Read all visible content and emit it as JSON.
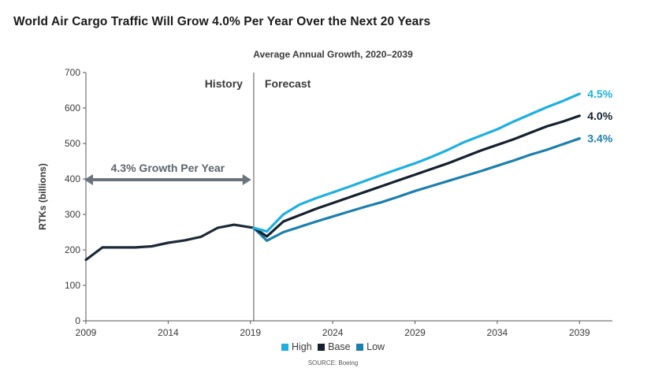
{
  "title": "World Air Cargo Traffic Will Grow 4.0% Per Year Over the Next 20 Years",
  "subtitle": "Average Annual Growth, 2020–2039",
  "source": "SOURCE: Boeing",
  "chart_data": {
    "type": "line",
    "title": "World Air Cargo Traffic Will Grow 4.0% Per Year Over the Next 20 Years",
    "subtitle": "Average Annual Growth, 2020–2039",
    "xlabel": "",
    "ylabel": "RTKs (billions)",
    "xlim": [
      2009,
      2041
    ],
    "ylim": [
      0,
      700
    ],
    "x_ticks": [
      "2009",
      "2014",
      "2019",
      "2024",
      "2029",
      "2034",
      "2039"
    ],
    "y_ticks": [
      "0",
      "100",
      "200",
      "300",
      "400",
      "500",
      "600",
      "700"
    ],
    "grid": false,
    "legend_position": "bottom",
    "regions": {
      "history_label": "History",
      "forecast_label": "Forecast",
      "divider_x": 2019.2
    },
    "annotation": {
      "text": "4.3% Growth Per Year",
      "x_from": 2009,
      "x_to": 2019
    },
    "history": {
      "name": "",
      "color": "#1b2a38",
      "x": [
        2009,
        2010,
        2011,
        2012,
        2013,
        2014,
        2015,
        2016,
        2017,
        2018,
        2019.2
      ],
      "y": [
        172,
        207,
        207,
        207,
        210,
        220,
        227,
        237,
        262,
        271,
        262
      ]
    },
    "series": [
      {
        "name": "High",
        "color": "#1fb0e0",
        "end_label": "4.5%",
        "x": [
          2019.2,
          2020,
          2021,
          2022,
          2023,
          2024,
          2025,
          2026,
          2027,
          2028,
          2029,
          2030,
          2031,
          2032,
          2033,
          2034,
          2035,
          2036,
          2037,
          2038,
          2039
        ],
        "y": [
          262,
          252,
          300,
          328,
          346,
          362,
          378,
          395,
          412,
          428,
          444,
          462,
          482,
          504,
          522,
          540,
          562,
          582,
          602,
          620,
          640
        ]
      },
      {
        "name": "Base",
        "color": "#14212f",
        "end_label": "4.0%",
        "x": [
          2019.2,
          2020,
          2021,
          2022,
          2023,
          2024,
          2025,
          2026,
          2027,
          2028,
          2029,
          2030,
          2031,
          2032,
          2033,
          2034,
          2035,
          2036,
          2037,
          2038,
          2039
        ],
        "y": [
          262,
          238,
          280,
          298,
          316,
          332,
          348,
          364,
          380,
          396,
          412,
          428,
          444,
          462,
          480,
          496,
          512,
          530,
          548,
          562,
          578
        ]
      },
      {
        "name": "Low",
        "color": "#1d7fae",
        "end_label": "3.4%",
        "x": [
          2019.2,
          2020,
          2021,
          2022,
          2023,
          2024,
          2025,
          2026,
          2027,
          2028,
          2029,
          2030,
          2031,
          2032,
          2033,
          2034,
          2035,
          2036,
          2037,
          2038,
          2039
        ],
        "y": [
          262,
          226,
          250,
          265,
          280,
          294,
          308,
          322,
          335,
          350,
          366,
          380,
          394,
          408,
          422,
          437,
          452,
          468,
          482,
          498,
          514
        ]
      }
    ]
  }
}
